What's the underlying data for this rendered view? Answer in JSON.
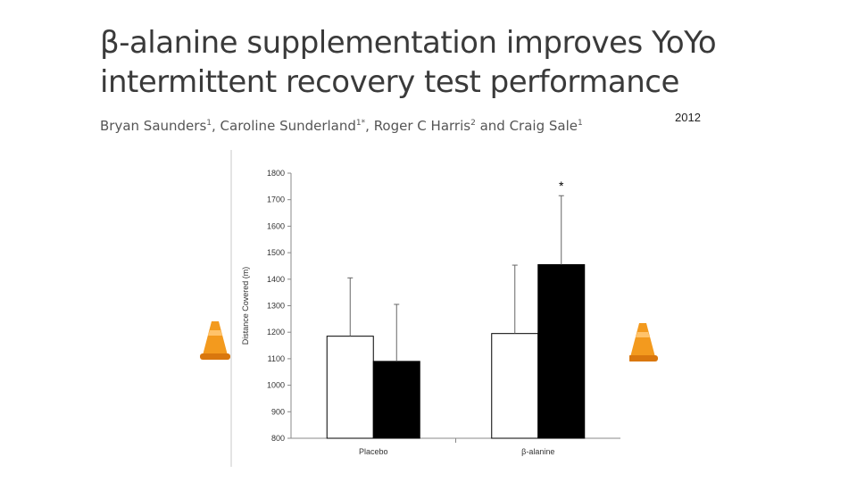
{
  "slide": {
    "title_line1": "β-alanine supplementation improves YoYo",
    "title_line2": "intermittent recovery test performance",
    "year": "2012",
    "authors": [
      {
        "name": "Bryan Saunders",
        "sup": "1"
      },
      {
        "name": "Caroline Sunderland",
        "sup": "1*"
      },
      {
        "name": "Roger C Harris",
        "sup": "2"
      },
      {
        "name": "Craig Sale",
        "sup": "1"
      }
    ]
  },
  "chart_data": {
    "type": "bar",
    "categories": [
      "Placebo",
      "β-alanine"
    ],
    "series": [
      {
        "color": "#ffffff",
        "values": [
          1185,
          1195
        ],
        "error": [
          220,
          258
        ]
      },
      {
        "color": "#000000",
        "values": [
          1090,
          1455
        ],
        "error": [
          215,
          260
        ]
      }
    ],
    "ylabel": "Distance Covered (m)",
    "ylim": [
      800,
      1800
    ],
    "yticks": [
      800,
      900,
      1000,
      1100,
      1200,
      1300,
      1400,
      1500,
      1600,
      1700,
      1800
    ],
    "annotations": [
      {
        "text": "*",
        "category": "β-alanine",
        "series_index": 1
      }
    ],
    "grid": false,
    "legend": "none"
  },
  "decor": {
    "cone_icon": "traffic-cone-icon",
    "cone_color": "#f39a1e"
  }
}
